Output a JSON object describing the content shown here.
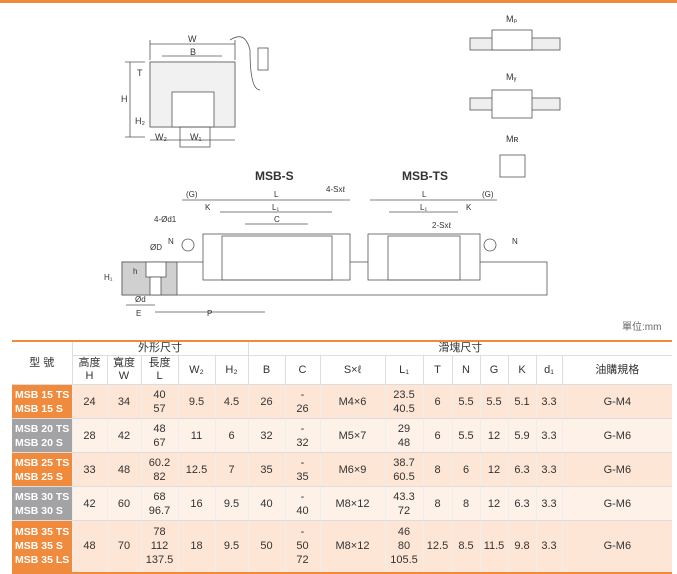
{
  "drawing": {
    "labels": {
      "W": "W",
      "B": "B",
      "T": "T",
      "H": "H",
      "H2": "H₂",
      "W2": "W₂",
      "W1": "W₁",
      "Mp": "Mₚ",
      "My": "Mᵧ",
      "Mr": "Mʀ",
      "msb_s": "MSB-S",
      "msb_ts": "MSB-TS",
      "G": "(G)",
      "L": "L",
      "L1": "L₁",
      "K": "K",
      "C": "C",
      "sxl4": "4-Sxℓ",
      "sxl2": "2-Sxℓ",
      "d1": "4-Ød1",
      "N": "N",
      "D": "ØD",
      "h": "h",
      "H1": "H₁",
      "d": "Ød",
      "E": "E",
      "P": "P"
    },
    "colors": {
      "line": "#555555",
      "rail_fill": "#d0d0d0",
      "accent": "#f08a3c"
    }
  },
  "unit": "單位:mm",
  "table": {
    "model_header": "型 號",
    "group_outer": "外形尺寸",
    "group_block": "滑塊尺寸",
    "headers": [
      [
        "高度",
        "H"
      ],
      [
        "寬度",
        "W"
      ],
      [
        "長度",
        "L"
      ],
      [
        "W₂"
      ],
      [
        "H₂"
      ],
      [
        "B"
      ],
      [
        "C"
      ],
      [
        "S×ℓ"
      ],
      [
        "L₁"
      ],
      [
        "T"
      ],
      [
        "N"
      ],
      [
        "G"
      ],
      [
        "K"
      ],
      [
        "d₁"
      ],
      [
        "油購規格"
      ]
    ],
    "rows": [
      {
        "color": "orange",
        "models": [
          "MSB 15 TS",
          "MSB 15 S"
        ],
        "cells": [
          [
            "24"
          ],
          [
            "34"
          ],
          [
            "40",
            "57"
          ],
          [
            "9.5"
          ],
          [
            "4.5"
          ],
          [
            "26"
          ],
          [
            "-",
            "26"
          ],
          [
            "M4×6"
          ],
          [
            "23.5",
            "40.5"
          ],
          [
            "6"
          ],
          [
            "5.5"
          ],
          [
            "5.5"
          ],
          [
            "5.1"
          ],
          [
            "3.3"
          ],
          [
            "G-M4"
          ]
        ]
      },
      {
        "color": "gray",
        "models": [
          "MSB 20 TS",
          "MSB 20 S"
        ],
        "cells": [
          [
            "28"
          ],
          [
            "42"
          ],
          [
            "48",
            "67"
          ],
          [
            "11"
          ],
          [
            "6"
          ],
          [
            "32"
          ],
          [
            "-",
            "32"
          ],
          [
            "M5×7"
          ],
          [
            "29",
            "48"
          ],
          [
            "6"
          ],
          [
            "5.5"
          ],
          [
            "12"
          ],
          [
            "5.9"
          ],
          [
            "3.3"
          ],
          [
            "G-M6"
          ]
        ]
      },
      {
        "color": "orange",
        "models": [
          "MSB 25 TS",
          "MSB 25 S"
        ],
        "cells": [
          [
            "33"
          ],
          [
            "48"
          ],
          [
            "60.2",
            "82"
          ],
          [
            "12.5"
          ],
          [
            "7"
          ],
          [
            "35"
          ],
          [
            "-",
            "35"
          ],
          [
            "M6×9"
          ],
          [
            "38.7",
            "60.5"
          ],
          [
            "8"
          ],
          [
            "6"
          ],
          [
            "12"
          ],
          [
            "6.3"
          ],
          [
            "3.3"
          ],
          [
            "G-M6"
          ]
        ]
      },
      {
        "color": "gray",
        "models": [
          "MSB 30 TS",
          "MSB 30 S"
        ],
        "cells": [
          [
            "42"
          ],
          [
            "60"
          ],
          [
            "68",
            "96.7"
          ],
          [
            "16"
          ],
          [
            "9.5"
          ],
          [
            "40"
          ],
          [
            "-",
            "40"
          ],
          [
            "M8×12"
          ],
          [
            "43.3",
            "72"
          ],
          [
            "8"
          ],
          [
            "8"
          ],
          [
            "12"
          ],
          [
            "6.3"
          ],
          [
            "3.3"
          ],
          [
            "G-M6"
          ]
        ]
      },
      {
        "color": "orange",
        "models": [
          "MSB 35 TS",
          "MSB 35 S",
          "MSB 35 LS"
        ],
        "cells": [
          [
            "48"
          ],
          [
            "70"
          ],
          [
            "78",
            "112",
            "137.5"
          ],
          [
            "18"
          ],
          [
            "9.5"
          ],
          [
            "50"
          ],
          [
            "-",
            "50",
            "72"
          ],
          [
            "M8×12"
          ],
          [
            "46",
            "80",
            "105.5"
          ],
          [
            "12.5"
          ],
          [
            "8.5"
          ],
          [
            "11.5"
          ],
          [
            "9.8"
          ],
          [
            "3.3"
          ],
          [
            "G-M6"
          ]
        ]
      }
    ]
  }
}
